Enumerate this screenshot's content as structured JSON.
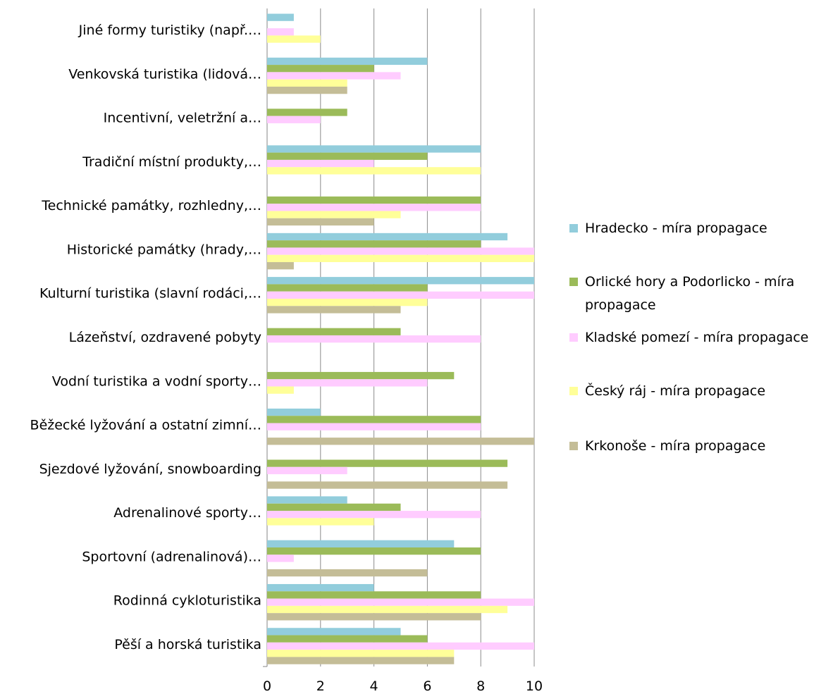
{
  "chart_data": {
    "type": "bar",
    "orientation": "horizontal",
    "categories": [
      "Pěší a horská turistika",
      "Rodinná cykloturistika",
      "Sportovní (adrenalinová)…",
      "Adrenalinové sporty…",
      "Sjezdové lyžování, snowboarding",
      "Běžecké lyžování a ostatní zimní…",
      "Vodní turistika a vodní sporty…",
      "Lázeňství, ozdravené pobyty",
      "Kulturní turistika (slavní rodáci,…",
      "Historické památky (hrady,…",
      "Technické památky, rozhledny,…",
      "Tradiční místní produkty,…",
      "Incentivní, veletržní a…",
      "Venkovská turistika (lidová…",
      "Jiné formy turistiky (např.…"
    ],
    "series": [
      {
        "name": "Hradecko - míra propagace",
        "color": "#92cddc",
        "values": [
          5,
          4,
          7,
          3,
          0,
          2,
          0,
          0,
          10,
          9,
          0,
          8,
          0,
          6,
          1
        ]
      },
      {
        "name": "Orlické hory a Podorlicko - míra propagace",
        "color": "#9bbb59",
        "values": [
          6,
          8,
          8,
          5,
          9,
          8,
          7,
          5,
          6,
          8,
          8,
          6,
          3,
          4,
          0
        ]
      },
      {
        "name": "Kladské pomezí - míra propagace",
        "color": "#ffccff",
        "values": [
          10,
          10,
          1,
          8,
          3,
          8,
          6,
          8,
          10,
          10,
          8,
          4,
          2,
          5,
          1
        ]
      },
      {
        "name": "Český ráj - míra propagace",
        "color": "#ffff99",
        "values": [
          7,
          9,
          0,
          4,
          0,
          0,
          1,
          0,
          6,
          10,
          5,
          8,
          0,
          3,
          2
        ]
      },
      {
        "name": "Krkonoše - míra propagace",
        "color": "#c4bd97",
        "values": [
          7,
          8,
          6,
          0,
          9,
          10,
          0,
          0,
          5,
          1,
          4,
          0,
          0,
          3,
          0
        ]
      }
    ],
    "xlim": [
      0,
      10
    ],
    "xticks": [
      "0",
      "2",
      "4",
      "6",
      "8",
      "10"
    ],
    "grid": true,
    "legend_position": "right",
    "legend_lines": [
      [
        "Hradecko - míra propagace"
      ],
      [
        "Orlické hory a Podorlicko - míra",
        "propagace"
      ],
      [
        "Kladské pomezí - míra propagace"
      ],
      [
        "Český ráj - míra propagace"
      ],
      [
        "Krkonoše - míra propagace"
      ]
    ],
    "title": "",
    "xlabel": "",
    "ylabel": ""
  }
}
